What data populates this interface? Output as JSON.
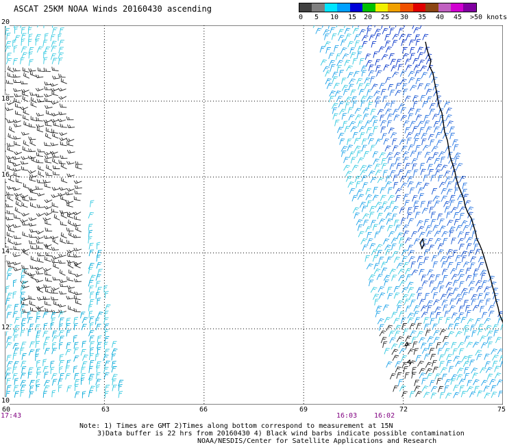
{
  "title": "ASCAT 25KM NOAA Winds 20160430 ascending",
  "legend": {
    "labels": [
      "0",
      "5",
      "10",
      "15",
      "20",
      "25",
      "30",
      "35",
      "40",
      "45",
      ">50 knots"
    ],
    "colors": [
      "#404040",
      "#7f7f7f",
      "#00e5ff",
      "#00a0ff",
      "#0000d8",
      "#00c000",
      "#f0f000",
      "#f0a000",
      "#f05000",
      "#e00000",
      "#8b4513",
      "#c060c0",
      "#d000d0",
      "#8000a0"
    ]
  },
  "axes": {
    "lat_labels": [
      "20",
      "18",
      "16",
      "14",
      "12",
      "10"
    ],
    "lon_labels": [
      "60",
      "63",
      "66",
      "69",
      "72",
      "75"
    ]
  },
  "times": [
    "17:43",
    "16:03",
    "16:02"
  ],
  "notes": [
    "Note: 1) Times are GMT 2)Times along bottom correspond to measurement at 15N",
    "3)Data buffer is 22 hrs from 20160430 4) Black wind barbs indicate possible contamination",
    "NOAA/NESDIS/Center for Satellite Applications and Research"
  ]
}
